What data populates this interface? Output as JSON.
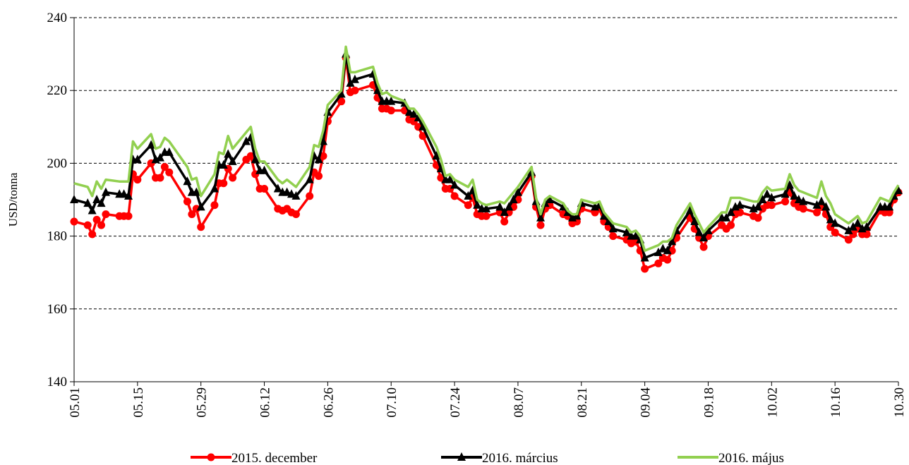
{
  "chart_data": {
    "type": "line",
    "y_label": "USD/tonna",
    "x": [
      "05.01",
      "05.04",
      "05.05",
      "05.06",
      "05.07",
      "05.08",
      "05.11",
      "05.12",
      "05.13",
      "05.14",
      "05.15",
      "05.18",
      "05.19",
      "05.20",
      "05.21",
      "05.22",
      "05.26",
      "05.27",
      "05.28",
      "05.29",
      "06.01",
      "06.02",
      "06.03",
      "06.04",
      "06.05",
      "06.08",
      "06.09",
      "06.10",
      "06.11",
      "06.12",
      "06.15",
      "06.16",
      "06.17",
      "06.18",
      "06.19",
      "06.22",
      "06.23",
      "06.24",
      "06.25",
      "06.26",
      "06.29",
      "06.30",
      "07.01",
      "07.02",
      "07.06",
      "07.07",
      "07.08",
      "07.09",
      "07.10",
      "07.13",
      "07.14",
      "07.15",
      "07.16",
      "07.17",
      "07.20",
      "07.21",
      "07.22",
      "07.23",
      "07.24",
      "07.27",
      "07.28",
      "07.29",
      "07.30",
      "07.31",
      "08.03",
      "08.04",
      "08.05",
      "08.06",
      "08.07",
      "08.10",
      "08.11",
      "08.12",
      "08.13",
      "08.14",
      "08.17",
      "08.18",
      "08.19",
      "08.20",
      "08.21",
      "08.24",
      "08.25",
      "08.26",
      "08.27",
      "08.28",
      "08.31",
      "09.01",
      "09.02",
      "09.03",
      "09.04",
      "09.07",
      "09.08",
      "09.09",
      "09.10",
      "09.11",
      "09.14",
      "09.15",
      "09.16",
      "09.17",
      "09.18",
      "09.21",
      "09.22",
      "09.23",
      "09.24",
      "09.25",
      "09.28",
      "09.29",
      "09.30",
      "10.01",
      "10.02",
      "10.05",
      "10.06",
      "10.07",
      "10.08",
      "10.09",
      "10.12",
      "10.13",
      "10.14",
      "10.15",
      "10.16",
      "10.19",
      "10.20",
      "10.21",
      "10.22",
      "10.23",
      "10.26",
      "10.27",
      "10.28",
      "10.29",
      "10.30"
    ],
    "series": [
      {
        "name": "2015. december",
        "color": "#ff0000",
        "marker": "circle",
        "values": [
          184,
          183,
          180.5,
          184.5,
          183,
          186,
          185.5,
          185.5,
          185.5,
          197,
          195.5,
          200,
          196,
          196,
          199,
          197.5,
          189.5,
          186,
          187.5,
          182.5,
          188.5,
          194.5,
          194.5,
          198.5,
          196,
          201,
          202,
          197,
          193,
          193,
          187.5,
          187,
          187.5,
          186.5,
          186,
          191,
          197.5,
          196.5,
          202,
          211.5,
          217,
          229,
          219.5,
          220,
          221.5,
          218,
          215,
          215,
          214.5,
          214.5,
          212,
          211.5,
          210,
          207.5,
          199.5,
          196,
          193,
          193,
          191,
          188.5,
          190.5,
          186,
          185.5,
          185.5,
          186.5,
          184,
          186.5,
          188,
          190,
          196.5,
          188,
          183,
          187.5,
          188.5,
          186,
          185.5,
          183.5,
          184,
          187.5,
          186.5,
          187.5,
          184,
          182.5,
          180,
          179,
          178,
          178.5,
          176,
          171,
          172.5,
          174,
          173.5,
          176,
          179.5,
          185,
          182,
          179.5,
          177,
          180,
          183,
          182,
          183,
          186,
          186.5,
          185.5,
          185,
          187.5,
          188.5,
          188.5,
          189.5,
          192,
          189,
          188,
          187.5,
          186.5,
          188,
          186,
          182.5,
          181,
          179,
          180.5,
          182,
          180.5,
          180.5,
          187,
          186.5,
          186.5,
          190,
          192
        ]
      },
      {
        "name": "2016. március",
        "color": "#000000",
        "marker": "triangle",
        "values": [
          190,
          189,
          187,
          190,
          189,
          192,
          191.5,
          191.5,
          191,
          201,
          201,
          205,
          201,
          201.5,
          203,
          203,
          195,
          192,
          192,
          188,
          193,
          199.5,
          199.5,
          202.5,
          200.5,
          206,
          207,
          201,
          198,
          198,
          193,
          192,
          192,
          191.5,
          191,
          195.5,
          202,
          201,
          206,
          214,
          219,
          230,
          222,
          223,
          224.5,
          220,
          217,
          217,
          217,
          216.5,
          214,
          213.5,
          212.5,
          210,
          202,
          198.5,
          195.5,
          195.5,
          194,
          191,
          192.5,
          188.5,
          187.5,
          187.5,
          188,
          186.5,
          188,
          190,
          192,
          197.5,
          189.5,
          185,
          189,
          190,
          188,
          186.5,
          185,
          185.5,
          189,
          188,
          188.5,
          185.5,
          184,
          182,
          181,
          180,
          180,
          179,
          174,
          175.5,
          176.5,
          176,
          178.5,
          181.5,
          187,
          184,
          181,
          179.5,
          181.5,
          185,
          185,
          186.5,
          188,
          188.5,
          187.5,
          188,
          190,
          191.5,
          190.5,
          191.5,
          194,
          191,
          190,
          189.5,
          188.5,
          189.5,
          188,
          184.5,
          183.5,
          181.5,
          182.5,
          183.5,
          182,
          182.5,
          188,
          188,
          188,
          191,
          192.5
        ]
      },
      {
        "name": "2016. május",
        "color": "#92d050",
        "marker": "none",
        "values": [
          194.5,
          193.5,
          191,
          195,
          193,
          195.5,
          195,
          195,
          195,
          206,
          204,
          208,
          204,
          204.5,
          207,
          206,
          199,
          195.5,
          196,
          191,
          197,
          203,
          202.5,
          207.5,
          204,
          208.5,
          210,
          204,
          200.5,
          200.5,
          195.5,
          194.5,
          195.5,
          194.5,
          193.5,
          199,
          205,
          204.5,
          209,
          216,
          220,
          232,
          225,
          225,
          226.5,
          222,
          219,
          219.5,
          218.5,
          217,
          215,
          215,
          213.5,
          211.5,
          204.5,
          201,
          196.5,
          197,
          195.5,
          193.5,
          195.5,
          190,
          189,
          188.5,
          189.5,
          189,
          190.5,
          192,
          193.5,
          199,
          190.5,
          186,
          190,
          191,
          189,
          187,
          186,
          186,
          190,
          189,
          189.5,
          186.5,
          185,
          183.5,
          182.5,
          181,
          181.5,
          180,
          176,
          177.5,
          178.5,
          178.5,
          179.5,
          183,
          189,
          186,
          183.5,
          181,
          182.5,
          186.5,
          186.5,
          190.5,
          190.5,
          190.5,
          189.5,
          189.5,
          192,
          193.5,
          192.5,
          193,
          197,
          194,
          192.5,
          192,
          190.5,
          195,
          191,
          189,
          186,
          183.5,
          184.5,
          185.5,
          183.5,
          184,
          190.5,
          190,
          189.5,
          192,
          194
        ]
      }
    ],
    "xlim": [
      "05.01",
      "10.30"
    ],
    "xticks": [
      "05.01",
      "05.15",
      "05.29",
      "06.12",
      "06.26",
      "07.10",
      "07.24",
      "08.07",
      "08.21",
      "09.04",
      "09.18",
      "10.02",
      "10.16",
      "10.30"
    ],
    "ylim": [
      140,
      240
    ],
    "yticks": [
      140,
      160,
      180,
      200,
      220,
      240
    ],
    "grid": true,
    "legend": "bottom"
  }
}
